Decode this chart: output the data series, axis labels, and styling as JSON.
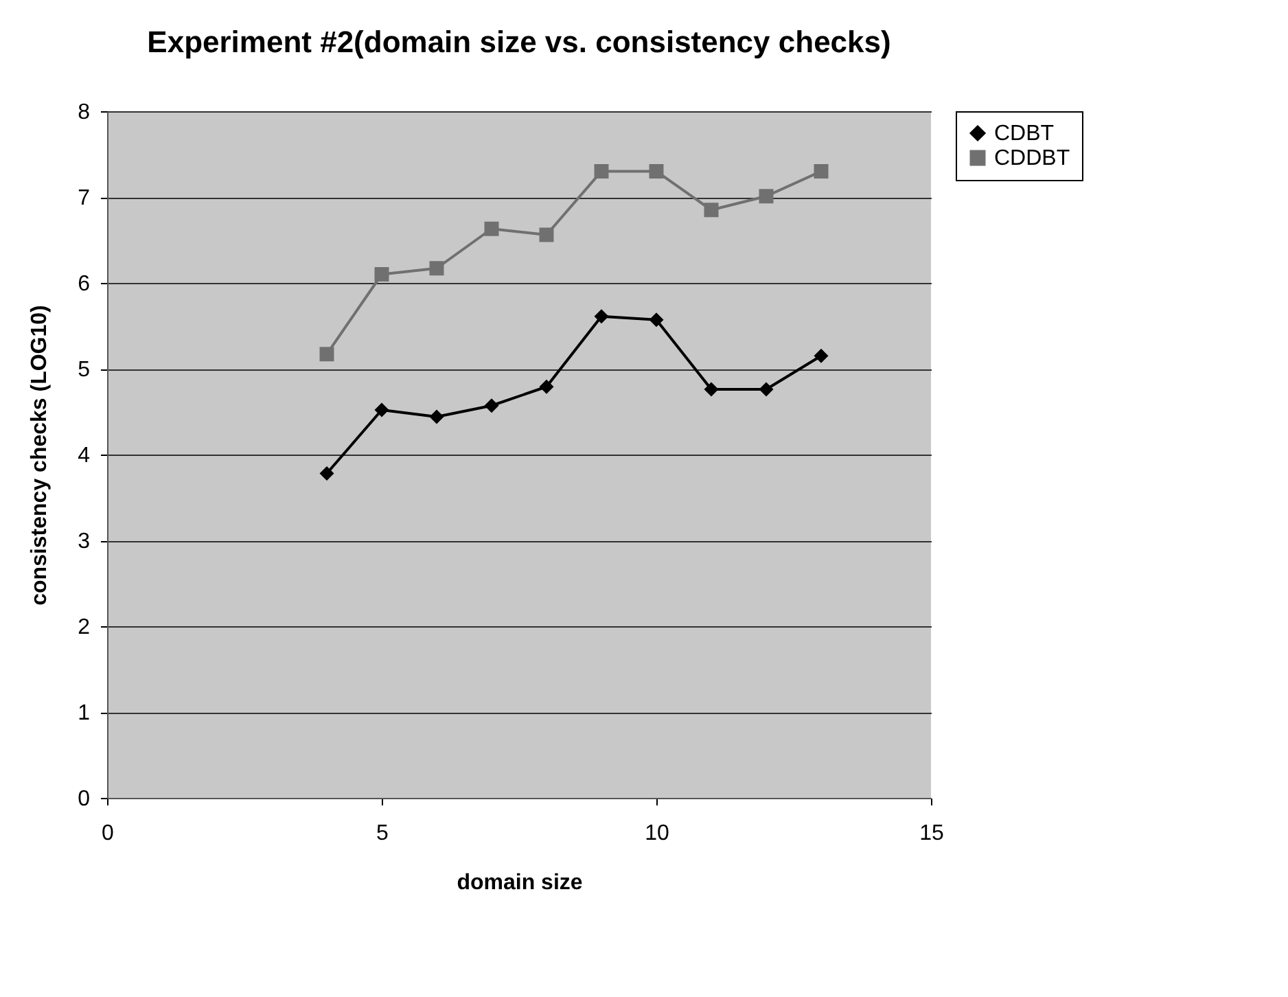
{
  "chart_data": {
    "type": "line",
    "title": "Experiment #2(domain size vs. consistency checks)",
    "xlabel": "domain size",
    "ylabel": "consistency checks (LOG10)",
    "x": [
      4,
      5,
      6,
      7,
      8,
      9,
      10,
      11,
      12,
      13
    ],
    "series": [
      {
        "name": "CDBT",
        "color": "#000000",
        "marker": "diamond",
        "values": [
          3.78,
          4.52,
          4.44,
          4.57,
          4.79,
          5.61,
          5.57,
          4.76,
          4.76,
          5.15
        ]
      },
      {
        "name": "CDDBT",
        "color": "#707070",
        "marker": "square",
        "values": [
          5.17,
          6.1,
          6.17,
          6.63,
          6.56,
          7.3,
          7.3,
          6.85,
          7.01,
          7.3
        ]
      }
    ],
    "xlim": [
      0,
      15
    ],
    "xticks": [
      0,
      5,
      10,
      15
    ],
    "ylim": [
      0,
      8
    ],
    "yticks": [
      0,
      1,
      2,
      3,
      4,
      5,
      6,
      7,
      8
    ],
    "grid": "y",
    "legend": "right"
  }
}
